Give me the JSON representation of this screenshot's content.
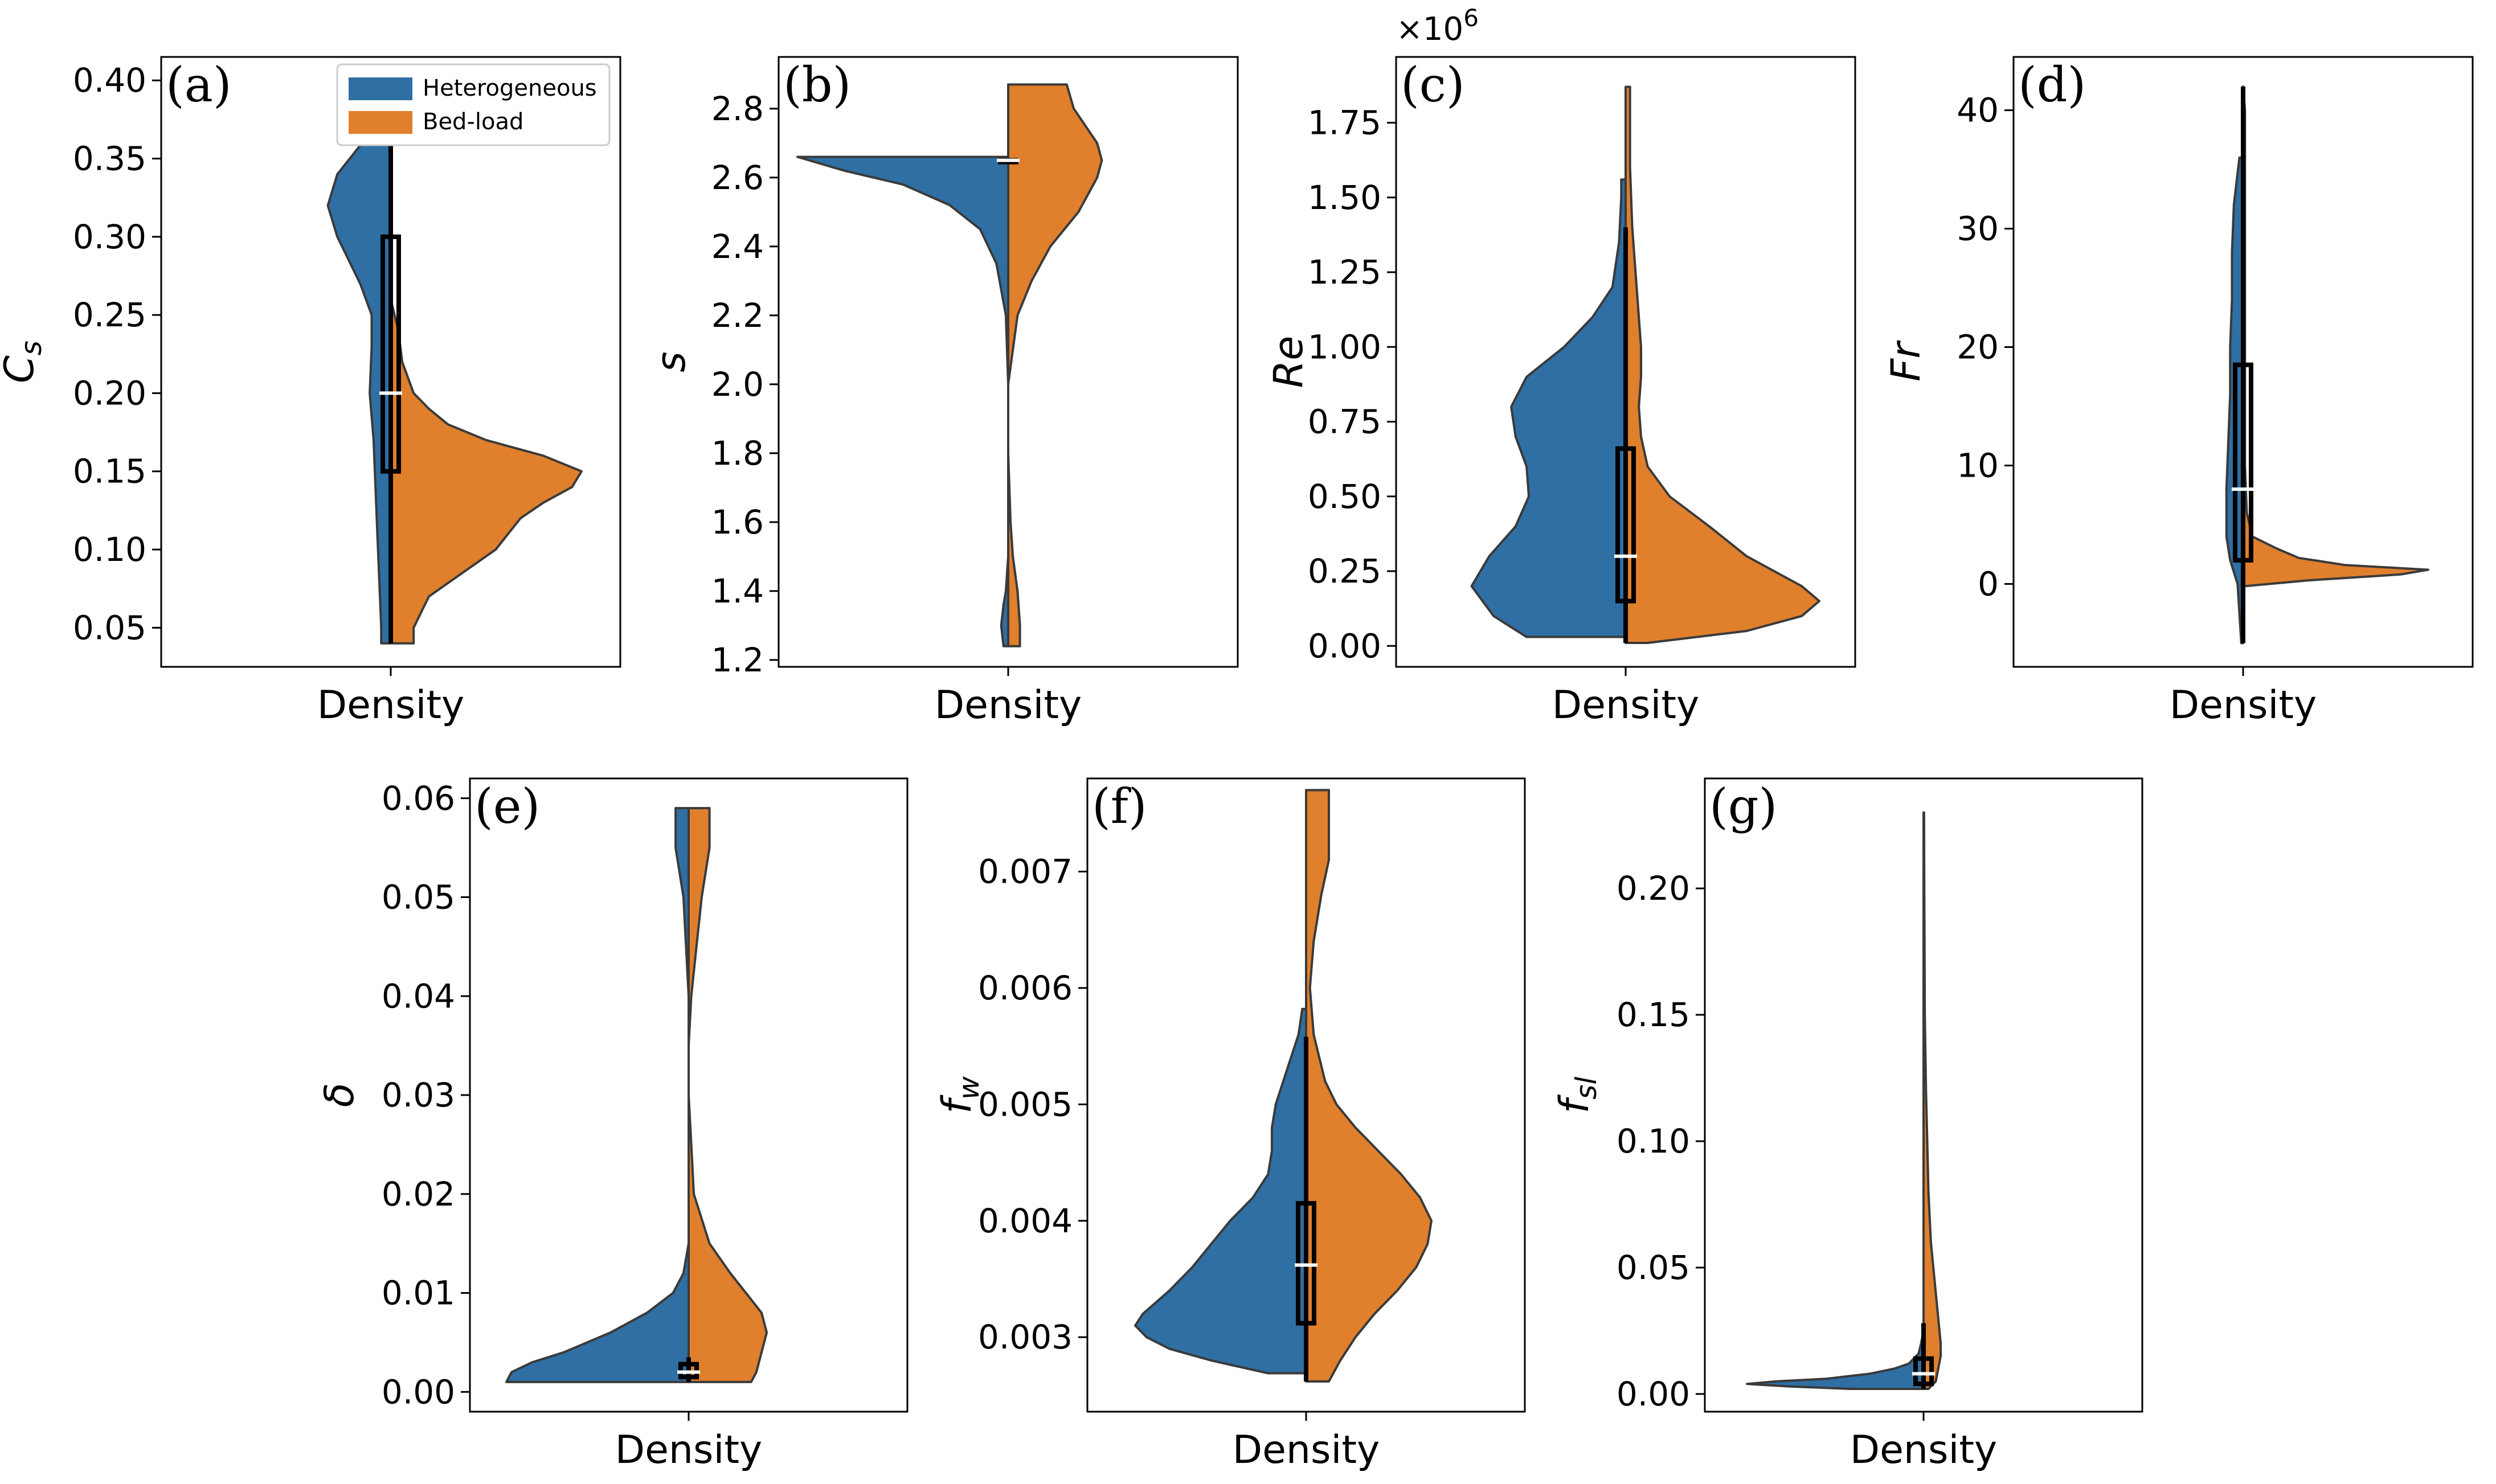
{
  "colors": {
    "heterogeneous": "#2f6fa3",
    "bedload": "#e07f2c",
    "outline": "#3a3a3a",
    "median": "#ffffff"
  },
  "legend": {
    "items": [
      "Heterogeneous",
      "Bed-load"
    ]
  },
  "chart_data": [
    {
      "panel": "(a)",
      "type": "violin",
      "xlabel": "Density",
      "ylabel": "C",
      "ylabel_sub": "s",
      "ylim": [
        0.025,
        0.415
      ],
      "yticks": [
        0.05,
        0.1,
        0.15,
        0.2,
        0.25,
        0.3,
        0.35,
        0.4
      ],
      "yticklabels": [
        "0.05",
        "0.10",
        "0.15",
        "0.20",
        "0.25",
        "0.30",
        "0.35",
        "0.40"
      ],
      "box": {
        "q1": 0.15,
        "median": 0.2,
        "q3": 0.3,
        "whisker_low": 0.04,
        "whisker_high": 0.4
      },
      "heterogeneous": {
        "y": [
          0.04,
          0.05,
          0.08,
          0.11,
          0.14,
          0.17,
          0.2,
          0.23,
          0.25,
          0.27,
          0.3,
          0.32,
          0.34,
          0.36,
          0.38,
          0.4
        ],
        "density": [
          0.05,
          0.05,
          0.06,
          0.07,
          0.08,
          0.09,
          0.11,
          0.1,
          0.1,
          0.16,
          0.28,
          0.33,
          0.28,
          0.15,
          0.08,
          0.02
        ]
      },
      "bedload": {
        "y": [
          0.04,
          0.05,
          0.07,
          0.1,
          0.12,
          0.13,
          0.14,
          0.15,
          0.16,
          0.17,
          0.18,
          0.19,
          0.2,
          0.22,
          0.24,
          0.26
        ],
        "density": [
          0.12,
          0.12,
          0.2,
          0.55,
          0.68,
          0.8,
          0.95,
          1.0,
          0.8,
          0.5,
          0.3,
          0.2,
          0.12,
          0.06,
          0.04,
          0.0
        ]
      }
    },
    {
      "panel": "(b)",
      "type": "violin",
      "xlabel": "Density",
      "ylabel": "s",
      "ylabel_sub": "",
      "ylim": [
        1.18,
        2.95
      ],
      "yticks": [
        1.2,
        1.4,
        1.6,
        1.8,
        2.0,
        2.2,
        2.4,
        2.6,
        2.8
      ],
      "yticklabels": [
        "1.2",
        "1.4",
        "1.6",
        "1.8",
        "2.0",
        "2.2",
        "2.4",
        "2.6",
        "2.8"
      ],
      "box": {
        "q1": 2.65,
        "median": 2.65,
        "q3": 2.65,
        "whisker_low": 2.65,
        "whisker_high": 2.65
      },
      "heterogeneous": {
        "y": [
          1.24,
          1.3,
          1.36,
          1.4,
          1.5,
          1.7,
          2.0,
          2.2,
          2.35,
          2.45,
          2.52,
          2.58,
          2.62,
          2.66
        ],
        "density": [
          0.02,
          0.03,
          0.02,
          0.01,
          0.0,
          0.0,
          0.0,
          0.01,
          0.05,
          0.12,
          0.25,
          0.45,
          0.7,
          0.9
        ]
      },
      "bedload": {
        "y": [
          1.24,
          1.3,
          1.4,
          1.5,
          1.6,
          1.8,
          2.0,
          2.2,
          2.3,
          2.4,
          2.5,
          2.6,
          2.65,
          2.7,
          2.8,
          2.87
        ],
        "density": [
          0.05,
          0.05,
          0.04,
          0.02,
          0.01,
          0.0,
          0.0,
          0.04,
          0.1,
          0.18,
          0.3,
          0.38,
          0.4,
          0.38,
          0.28,
          0.25
        ]
      }
    },
    {
      "panel": "(c)",
      "type": "violin",
      "xlabel": "Density",
      "ylabel": "Re",
      "ylabel_sub": "",
      "offset_label": "×10",
      "offset_exp": "6",
      "ylim": [
        -0.07,
        1.97
      ],
      "yticks": [
        0.0,
        0.25,
        0.5,
        0.75,
        1.0,
        1.25,
        1.5,
        1.75
      ],
      "yticklabels": [
        "0.00",
        "0.25",
        "0.50",
        "0.75",
        "1.00",
        "1.25",
        "1.50",
        "1.75"
      ],
      "box": {
        "q1": 0.15,
        "median": 0.3,
        "q3": 0.66,
        "whisker_low": 0.01,
        "whisker_high": 1.4
      },
      "heterogeneous": {
        "y": [
          0.03,
          0.1,
          0.2,
          0.3,
          0.4,
          0.5,
          0.6,
          0.7,
          0.8,
          0.9,
          1.0,
          1.1,
          1.2,
          1.35,
          1.5,
          1.56
        ],
        "density": [
          0.45,
          0.6,
          0.7,
          0.62,
          0.5,
          0.44,
          0.45,
          0.5,
          0.52,
          0.45,
          0.28,
          0.15,
          0.06,
          0.03,
          0.02,
          0.02
        ]
      },
      "bedload": {
        "y": [
          0.01,
          0.05,
          0.1,
          0.15,
          0.2,
          0.3,
          0.4,
          0.5,
          0.6,
          0.7,
          0.8,
          0.9,
          1.0,
          1.2,
          1.4,
          1.6,
          1.87
        ],
        "density": [
          0.1,
          0.55,
          0.8,
          0.88,
          0.8,
          0.55,
          0.38,
          0.2,
          0.1,
          0.07,
          0.06,
          0.07,
          0.07,
          0.05,
          0.03,
          0.02,
          0.02
        ]
      }
    },
    {
      "panel": "(d)",
      "type": "violin",
      "xlabel": "Density",
      "ylabel": "Fr",
      "ylabel_sub": "",
      "ylim": [
        -7,
        44.5
      ],
      "yticks": [
        0,
        10,
        20,
        30,
        40
      ],
      "yticklabels": [
        "0",
        "10",
        "20",
        "30",
        "40"
      ],
      "box": {
        "q1": 2,
        "median": 8,
        "q3": 18.5,
        "whisker_low": -5,
        "whisker_high": 42
      },
      "heterogeneous": {
        "y": [
          -5,
          0,
          2,
          4,
          8,
          12,
          16,
          20,
          24,
          28,
          32,
          36
        ],
        "density": [
          0.01,
          0.03,
          0.07,
          0.09,
          0.09,
          0.08,
          0.07,
          0.07,
          0.06,
          0.06,
          0.05,
          0.02
        ]
      },
      "bedload": {
        "y": [
          -0.2,
          0.3,
          0.8,
          1.2,
          1.6,
          2.2,
          3,
          4,
          6,
          10,
          20,
          30,
          40,
          42
        ],
        "density": [
          0.0,
          0.35,
          0.85,
          1.0,
          0.55,
          0.3,
          0.18,
          0.05,
          0.02,
          0.01,
          0.01,
          0.01,
          0.01,
          0.0
        ]
      }
    },
    {
      "panel": "(e)",
      "type": "violin",
      "xlabel": "Density",
      "ylabel": "δ",
      "ylabel_sub": "",
      "ylim": [
        -0.002,
        0.062
      ],
      "yticks": [
        0.0,
        0.01,
        0.02,
        0.03,
        0.04,
        0.05,
        0.06
      ],
      "yticklabels": [
        "0.00",
        "0.01",
        "0.02",
        "0.03",
        "0.04",
        "0.05",
        "0.06"
      ],
      "box": {
        "q1": 0.0015,
        "median": 0.002,
        "q3": 0.0028,
        "whisker_low": 0.001,
        "whisker_high": 0.0035
      },
      "heterogeneous": {
        "y": [
          0.001,
          0.002,
          0.003,
          0.004,
          0.006,
          0.008,
          0.01,
          0.012,
          0.015,
          0.02,
          0.03,
          0.04,
          0.05,
          0.055,
          0.059
        ],
        "density": [
          0.7,
          0.68,
          0.6,
          0.48,
          0.3,
          0.16,
          0.06,
          0.02,
          0.0,
          0.0,
          0.0,
          0.0,
          0.02,
          0.05,
          0.05
        ]
      },
      "bedload": {
        "y": [
          0.001,
          0.002,
          0.004,
          0.006,
          0.008,
          0.01,
          0.012,
          0.015,
          0.02,
          0.025,
          0.03,
          0.035,
          0.04,
          0.045,
          0.05,
          0.055,
          0.059
        ],
        "density": [
          0.24,
          0.26,
          0.28,
          0.3,
          0.28,
          0.22,
          0.16,
          0.08,
          0.02,
          0.01,
          0.0,
          0.0,
          0.01,
          0.03,
          0.05,
          0.08,
          0.08
        ]
      }
    },
    {
      "panel": "(f)",
      "type": "violin",
      "xlabel": "Density",
      "ylabel": "f",
      "ylabel_sub": "w",
      "ylim": [
        0.00236,
        0.0078
      ],
      "yticks": [
        0.003,
        0.004,
        0.005,
        0.006,
        0.007
      ],
      "yticklabels": [
        "0.003",
        "0.004",
        "0.005",
        "0.006",
        "0.007"
      ],
      "box": {
        "q1": 0.00312,
        "median": 0.00362,
        "q3": 0.00415,
        "whisker_low": 0.00262,
        "whisker_high": 0.00558
      },
      "heterogeneous": {
        "y": [
          0.00269,
          0.0028,
          0.0029,
          0.003,
          0.0031,
          0.0032,
          0.0034,
          0.0036,
          0.0038,
          0.004,
          0.0042,
          0.0044,
          0.0046,
          0.0048,
          0.005,
          0.0052,
          0.0054,
          0.0056,
          0.00582
        ],
        "density": [
          0.2,
          0.5,
          0.72,
          0.84,
          0.9,
          0.86,
          0.72,
          0.6,
          0.5,
          0.4,
          0.28,
          0.2,
          0.18,
          0.18,
          0.16,
          0.12,
          0.08,
          0.04,
          0.02
        ]
      },
      "bedload": {
        "y": [
          0.00262,
          0.0028,
          0.003,
          0.0032,
          0.0034,
          0.0036,
          0.0038,
          0.004,
          0.0042,
          0.0044,
          0.0046,
          0.0048,
          0.005,
          0.0052,
          0.0056,
          0.006,
          0.0064,
          0.0068,
          0.0071,
          0.0074,
          0.0077
        ],
        "density": [
          0.12,
          0.18,
          0.26,
          0.36,
          0.48,
          0.58,
          0.64,
          0.66,
          0.6,
          0.5,
          0.38,
          0.26,
          0.16,
          0.1,
          0.04,
          0.02,
          0.04,
          0.08,
          0.12,
          0.12,
          0.12
        ]
      }
    },
    {
      "panel": "(g)",
      "type": "violin",
      "xlabel": "Density",
      "ylabel": "f",
      "ylabel_sub": "sl",
      "ylim": [
        -0.007,
        0.2435
      ],
      "yticks": [
        0.0,
        0.05,
        0.1,
        0.15,
        0.2
      ],
      "yticklabels": [
        "0.00",
        "0.05",
        "0.10",
        "0.15",
        "0.20"
      ],
      "box": {
        "q1": 0.004,
        "median": 0.008,
        "q3": 0.014,
        "whisker_low": 0.002,
        "whisker_high": 0.028
      },
      "heterogeneous": {
        "y": [
          0.002,
          0.003,
          0.004,
          0.005,
          0.006,
          0.008,
          0.01,
          0.012,
          0.014,
          0.016,
          0.02,
          0.025
        ],
        "density": [
          0.3,
          0.55,
          0.72,
          0.6,
          0.4,
          0.22,
          0.12,
          0.06,
          0.04,
          0.02,
          0.01,
          0.0
        ]
      },
      "bedload": {
        "y": [
          0.002,
          0.005,
          0.01,
          0.015,
          0.02,
          0.03,
          0.04,
          0.05,
          0.06,
          0.08,
          0.1,
          0.12,
          0.15,
          0.18,
          0.2,
          0.23
        ],
        "density": [
          0.02,
          0.05,
          0.06,
          0.07,
          0.07,
          0.06,
          0.05,
          0.04,
          0.03,
          0.02,
          0.015,
          0.01,
          0.005,
          0.004,
          0.003,
          0.002
        ]
      }
    }
  ]
}
